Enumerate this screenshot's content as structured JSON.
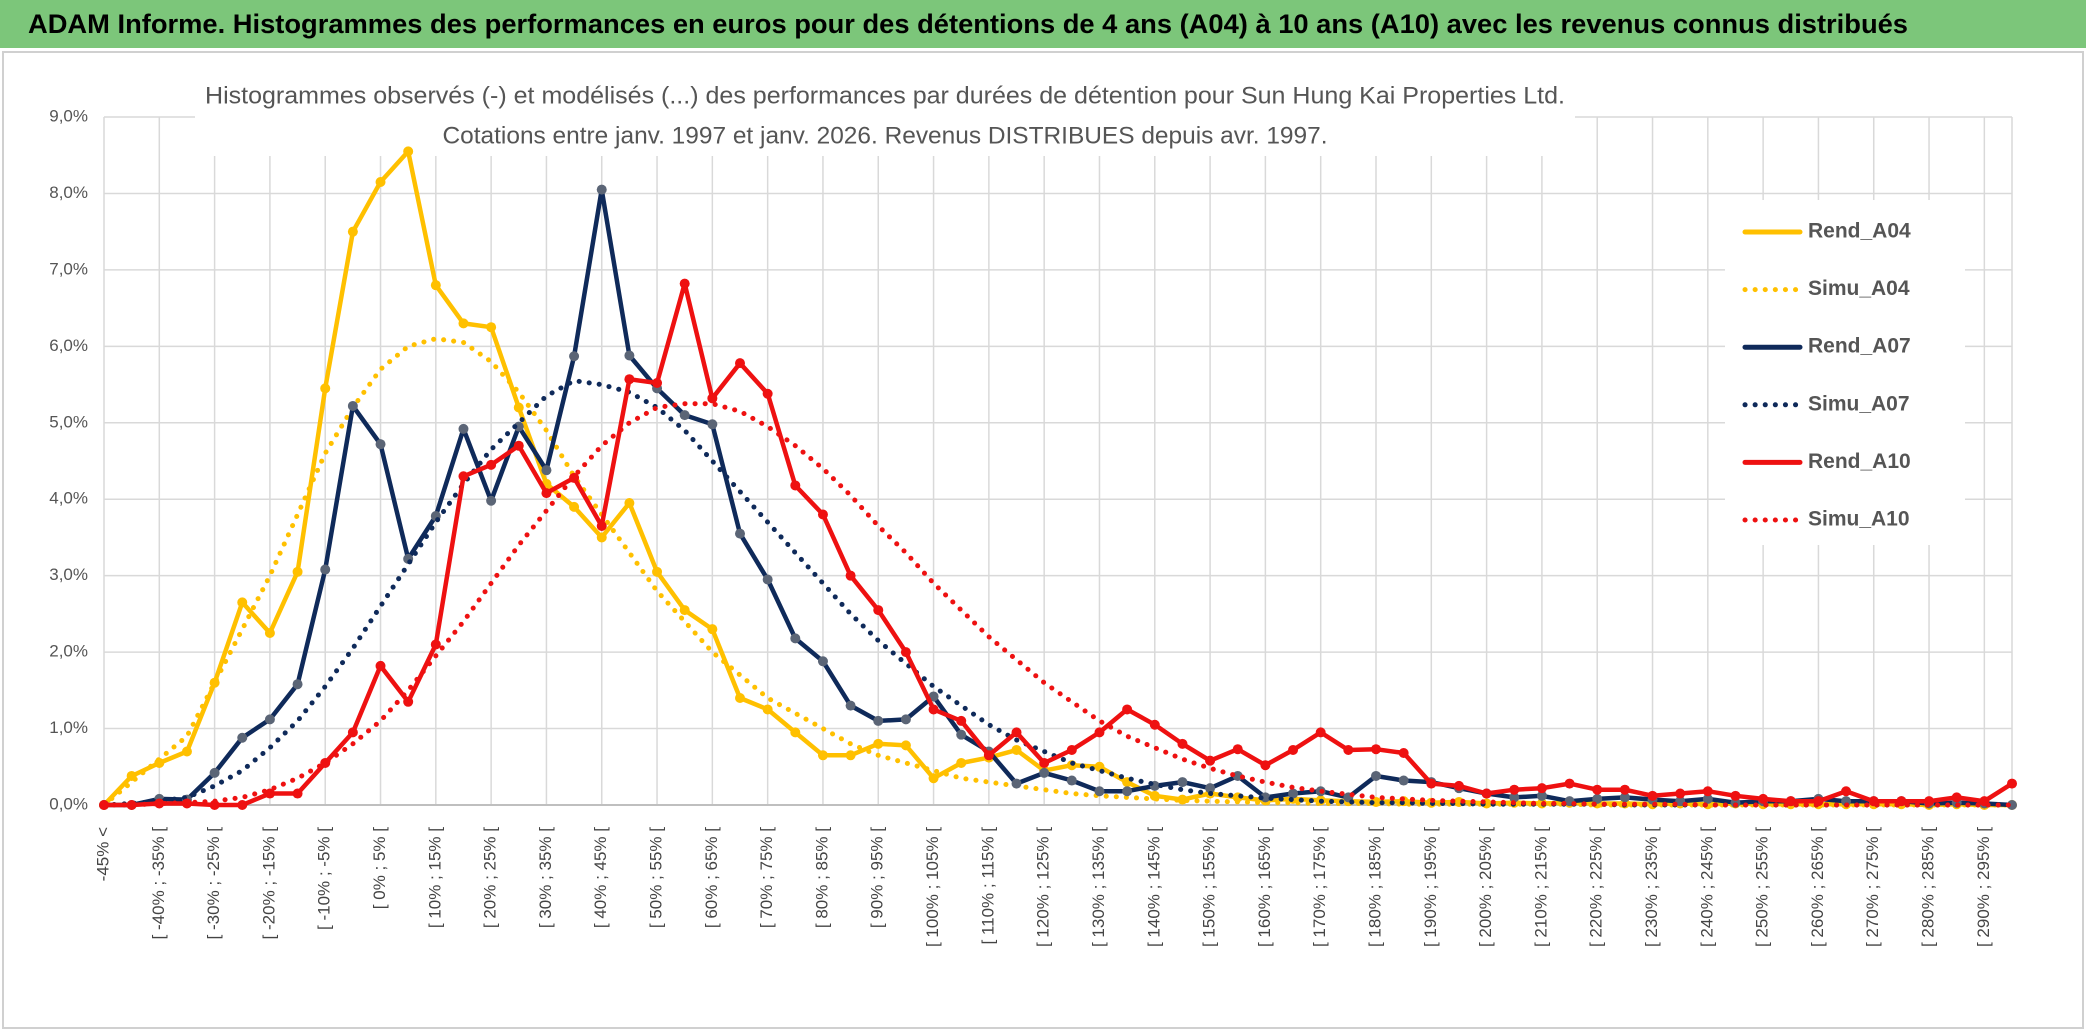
{
  "header": {
    "title": "ADAM Informe. Histogrammes des performances en euros pour des détentions de 4 ans (A04) à 10 ans (A10) avec les revenus connus distribués"
  },
  "chart_data": {
    "type": "line",
    "title": "Histogrammes observés (-) et modélisés (...) des performances par durées de détention pour Sun Hung Kai Properties Ltd.",
    "subtitle": "Cotations entre janv. 1997 et janv. 2026. Revenus DISTRIBUES depuis avr. 1997.",
    "categories": [
      "-45% <",
      null,
      "[ -40% ; -35% [",
      null,
      "[ -30% ; -25% [",
      null,
      "[ -20% ; -15% [",
      null,
      "[ -10% ; -5% [",
      null,
      "[ 0% ; 5% [",
      null,
      "[ 10% ; 15% [",
      null,
      "[ 20% ; 25% [",
      null,
      "[ 30% ; 35% [",
      null,
      "[ 40% ; 45% [",
      null,
      "[ 50% ; 55% [",
      null,
      "[ 60% ; 65% [",
      null,
      "[ 70% ; 75% [",
      null,
      "[ 80% ; 85% [",
      null,
      "[ 90% ; 95% [",
      null,
      "[ 100% ; 105% [",
      null,
      "[ 110% ; 115% [",
      null,
      "[ 120% ; 125% [",
      null,
      "[ 130% ; 135% [",
      null,
      "[ 140% ; 145% [",
      null,
      "[ 150% ; 155% [",
      null,
      "[ 160% ; 165% [",
      null,
      "[ 170% ; 175% [",
      null,
      "[ 180% ; 185% [",
      null,
      "[ 190% ; 195% [",
      null,
      "[ 200% ; 205% [",
      null,
      "[ 210% ; 215% [",
      null,
      "[ 220% ; 225% [",
      null,
      "[ 230% ; 235% [",
      null,
      "[ 240% ; 245% [",
      null,
      "[ 250% ; 255% [",
      null,
      "[ 260% ; 265% [",
      null,
      "[ 270% ; 275% [",
      null,
      "[ 280% ; 285% [",
      null,
      "[ 290% ; 295% [",
      null
    ],
    "series": [
      {
        "name": "Rend_A04",
        "color": "#ffc000",
        "line_style": "solid",
        "markers": true,
        "values": [
          0,
          0.38,
          0.55,
          0.7,
          1.6,
          2.65,
          2.25,
          3.05,
          5.45,
          7.5,
          8.15,
          8.55,
          6.8,
          6.3,
          6.25,
          5.2,
          4.2,
          3.9,
          3.5,
          3.95,
          3.05,
          2.55,
          2.3,
          1.4,
          1.25,
          0.95,
          0.65,
          0.65,
          0.8,
          0.78,
          0.35,
          0.55,
          0.62,
          0.72,
          0.45,
          0.52,
          0.5,
          0.3,
          0.12,
          0.07,
          0.15,
          0.1,
          0.06,
          0.08,
          0.06,
          0.05,
          0.04,
          0.05,
          0.03,
          0.04,
          0.02,
          0.03,
          0.02,
          0.03,
          0.02,
          0.02,
          0.01,
          0.02,
          0.01,
          0.02,
          0.01,
          0.01,
          0.01,
          0.01,
          0.01,
          0.01,
          0,
          0.01,
          0,
          0
        ]
      },
      {
        "name": "Simu_A04",
        "color": "#ffc000",
        "line_style": "dotted",
        "markers": false,
        "values": [
          0,
          0.3,
          0.6,
          0.9,
          1.6,
          2.3,
          3.0,
          3.8,
          4.6,
          5.2,
          5.7,
          6.0,
          6.1,
          6.05,
          5.8,
          5.4,
          4.9,
          4.3,
          3.8,
          3.3,
          2.8,
          2.4,
          2.0,
          1.7,
          1.4,
          1.2,
          1.0,
          0.8,
          0.65,
          0.55,
          0.45,
          0.35,
          0.3,
          0.25,
          0.2,
          0.15,
          0.12,
          0.1,
          0.08,
          0.06,
          0.05,
          0.04,
          0.03,
          0.03,
          0.02,
          0.02,
          0.02,
          0.01,
          0.01,
          0.01,
          0.01,
          0.01,
          0.01,
          0.01,
          0,
          0,
          0,
          0,
          0,
          0,
          0,
          0,
          0,
          0,
          0,
          0,
          0,
          0,
          0,
          0
        ]
      },
      {
        "name": "Rend_A07",
        "color": "#0f2a5a",
        "marker_color": "#5b6576",
        "line_style": "solid",
        "markers": true,
        "values": [
          0,
          0,
          0.08,
          0.07,
          0.42,
          0.88,
          1.12,
          1.58,
          3.08,
          5.22,
          4.72,
          3.22,
          3.78,
          4.92,
          3.98,
          4.95,
          4.38,
          5.87,
          8.05,
          5.88,
          5.45,
          5.1,
          4.98,
          3.55,
          2.95,
          2.18,
          1.88,
          1.3,
          1.1,
          1.12,
          1.42,
          0.92,
          0.7,
          0.28,
          0.42,
          0.32,
          0.18,
          0.18,
          0.25,
          0.3,
          0.22,
          0.38,
          0.1,
          0.15,
          0.18,
          0.1,
          0.38,
          0.32,
          0.3,
          0.22,
          0.15,
          0.1,
          0.12,
          0.05,
          0.08,
          0.1,
          0.07,
          0.05,
          0.08,
          0.03,
          0.05,
          0.05,
          0.08,
          0.05,
          0.05,
          0.05,
          0.02,
          0.03,
          0.02,
          0
        ]
      },
      {
        "name": "Simu_A07",
        "color": "#0f2a5a",
        "line_style": "dotted",
        "markers": false,
        "values": [
          0,
          0.02,
          0.05,
          0.1,
          0.25,
          0.45,
          0.75,
          1.1,
          1.55,
          2.05,
          2.6,
          3.15,
          3.7,
          4.2,
          4.65,
          5.0,
          5.35,
          5.55,
          5.5,
          5.4,
          5.2,
          4.9,
          4.5,
          4.1,
          3.7,
          3.3,
          2.9,
          2.5,
          2.15,
          1.85,
          1.55,
          1.3,
          1.05,
          0.85,
          0.7,
          0.55,
          0.45,
          0.35,
          0.27,
          0.2,
          0.15,
          0.12,
          0.09,
          0.07,
          0.05,
          0.04,
          0.03,
          0.03,
          0.02,
          0.02,
          0.01,
          0.01,
          0.01,
          0.01,
          0.01,
          0,
          0,
          0,
          0,
          0,
          0,
          0,
          0,
          0,
          0,
          0,
          0,
          0,
          0,
          0
        ]
      },
      {
        "name": "Rend_A10",
        "color": "#ee1111",
        "line_style": "solid",
        "markers": true,
        "values": [
          0,
          0,
          0.02,
          0.02,
          0,
          0,
          0.15,
          0.15,
          0.55,
          0.95,
          1.82,
          1.35,
          2.1,
          4.3,
          4.45,
          4.7,
          4.08,
          4.28,
          3.65,
          5.57,
          5.52,
          6.82,
          5.32,
          5.78,
          5.38,
          4.18,
          3.8,
          3.0,
          2.55,
          2.0,
          1.25,
          1.1,
          0.65,
          0.95,
          0.55,
          0.72,
          0.95,
          1.25,
          1.05,
          0.8,
          0.58,
          0.73,
          0.52,
          0.72,
          0.95,
          0.72,
          0.73,
          0.68,
          0.28,
          0.25,
          0.15,
          0.2,
          0.22,
          0.28,
          0.2,
          0.2,
          0.12,
          0.15,
          0.18,
          0.12,
          0.08,
          0.05,
          0.05,
          0.18,
          0.05,
          0.05,
          0.05,
          0.1,
          0.05,
          0.28
        ]
      },
      {
        "name": "Simu_A10",
        "color": "#ee1111",
        "line_style": "dotted",
        "markers": false,
        "values": [
          0,
          0,
          0.02,
          0.03,
          0.05,
          0.1,
          0.2,
          0.35,
          0.55,
          0.8,
          1.1,
          1.5,
          1.95,
          2.4,
          2.9,
          3.4,
          3.85,
          4.3,
          4.7,
          5.0,
          5.2,
          5.25,
          5.25,
          5.15,
          4.95,
          4.7,
          4.4,
          4.05,
          3.65,
          3.3,
          2.9,
          2.55,
          2.2,
          1.9,
          1.6,
          1.35,
          1.1,
          0.9,
          0.75,
          0.6,
          0.48,
          0.38,
          0.3,
          0.23,
          0.18,
          0.14,
          0.1,
          0.08,
          0.06,
          0.05,
          0.04,
          0.03,
          0.02,
          0.02,
          0.01,
          0.01,
          0.01,
          0.01,
          0,
          0,
          0,
          0,
          0,
          0,
          0,
          0,
          0,
          0,
          0,
          0
        ]
      }
    ],
    "ylim": [
      0,
      9
    ],
    "yticks": [
      {
        "value": 0,
        "label": "0,0%"
      },
      {
        "value": 1,
        "label": "1,0%"
      },
      {
        "value": 2,
        "label": "2,0%"
      },
      {
        "value": 3,
        "label": "3,0%"
      },
      {
        "value": 4,
        "label": "4,0%"
      },
      {
        "value": 5,
        "label": "5,0%"
      },
      {
        "value": 6,
        "label": "6,0%"
      },
      {
        "value": 7,
        "label": "7,0%"
      },
      {
        "value": 8,
        "label": "8,0%"
      },
      {
        "value": 9,
        "label": "9,0%"
      }
    ],
    "grid": true,
    "legend": "right"
  }
}
